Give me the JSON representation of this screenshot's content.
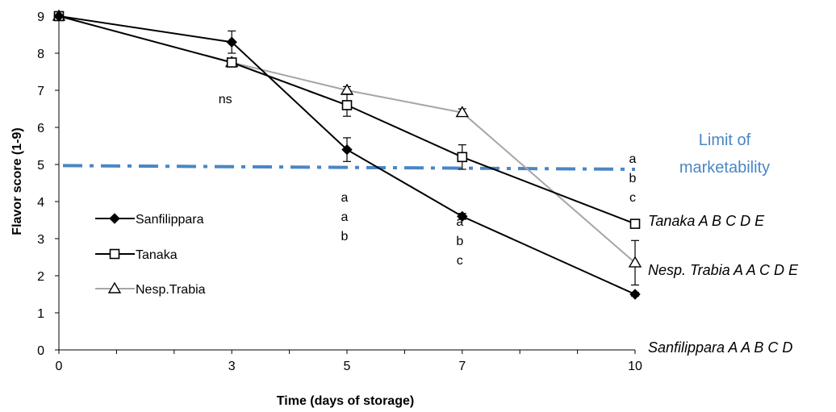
{
  "chart_data": {
    "type": "line",
    "xlabel": "Time (days of storage)",
    "ylabel": "Flavor score (1-9)",
    "xlim": [
      0,
      10
    ],
    "ylim": [
      0,
      9
    ],
    "x_ticks": [
      0,
      3,
      5,
      7,
      10
    ],
    "x_tick_labels": [
      "0",
      "3",
      "5",
      "7",
      "10"
    ],
    "y_ticks": [
      0,
      1,
      2,
      3,
      4,
      5,
      6,
      7,
      8,
      9
    ],
    "y_tick_labels": [
      "0",
      "1",
      "2",
      "3",
      "4",
      "5",
      "6",
      "7",
      "8",
      "9"
    ],
    "grid": false,
    "legend_position": "left",
    "x": [
      0,
      3,
      5,
      7,
      10
    ],
    "series": [
      {
        "name": "Sanfilippara",
        "marker": "filled-diamond",
        "color": "#000000",
        "values": [
          9.0,
          8.3,
          5.4,
          3.6,
          1.5
        ],
        "errors": [
          0.0,
          0.3,
          0.32,
          0.08,
          0.05
        ],
        "end_label": "Sanfilippara A A B C D"
      },
      {
        "name": "Tanaka",
        "marker": "open-square",
        "color": "#000000",
        "values": [
          9.0,
          7.75,
          6.6,
          5.2,
          3.4
        ],
        "errors": [
          0.0,
          0.1,
          0.3,
          0.33,
          0.1
        ],
        "end_label": "Tanaka A B C D E"
      },
      {
        "name": "Nesp.Trabia",
        "marker": "open-triangle",
        "color": "#a6a6a6",
        "values": [
          9.0,
          7.75,
          7.0,
          6.4,
          2.35
        ],
        "errors": [
          0.0,
          0.1,
          0.1,
          0.1,
          0.6
        ],
        "end_label": "Nesp. Trabia A A C D E"
      }
    ],
    "limit_line": {
      "label_lines": [
        "Limit of",
        "marketability"
      ],
      "y_start": 4.97,
      "y_end": 4.87,
      "color": "#4a86c5"
    },
    "annotations": [
      {
        "x": 3,
        "lines": [
          "ns"
        ]
      },
      {
        "x": 5,
        "lines": [
          "a",
          "a",
          "b"
        ]
      },
      {
        "x": 7,
        "lines": [
          "a",
          "b",
          "c"
        ]
      },
      {
        "x": 10,
        "lines": [
          "a",
          "b",
          "c"
        ]
      }
    ]
  }
}
